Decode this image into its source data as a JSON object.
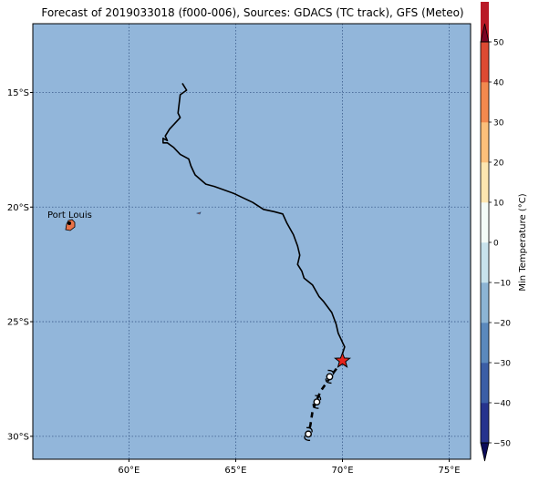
{
  "title": "Forecast of 2019033018 (f000-006), Sources: GDACS (TC track), GFS (Meteo)",
  "map": {
    "lon_range": [
      55.5,
      76
    ],
    "lat_range": [
      -31,
      -12
    ],
    "ocean_color": "#92b6da",
    "grid_color": "#3a5a8a",
    "land_color": "#e8734a",
    "x_ticks": [
      {
        "value": 60,
        "label": "60°E"
      },
      {
        "value": 65,
        "label": "65°E"
      },
      {
        "value": 70,
        "label": "70°E"
      },
      {
        "value": 75,
        "label": "75°E"
      }
    ],
    "y_ticks": [
      {
        "value": -15,
        "label": "15°S"
      },
      {
        "value": -20,
        "label": "20°S"
      },
      {
        "value": -25,
        "label": "25°S"
      },
      {
        "value": -30,
        "label": "30°S"
      }
    ]
  },
  "city": {
    "name": "Port Louis",
    "lon": 57.5,
    "lat": -20.16
  },
  "track": {
    "past_color": "#000000",
    "past_points": [
      [
        62.5,
        -14.6
      ],
      [
        62.7,
        -14.9
      ],
      [
        62.4,
        -15.1
      ],
      [
        62.3,
        -15.9
      ],
      [
        62.4,
        -16.1
      ],
      [
        61.9,
        -16.6
      ],
      [
        61.7,
        -16.9
      ],
      [
        61.8,
        -17.1
      ],
      [
        61.6,
        -17.0
      ],
      [
        61.6,
        -17.2
      ],
      [
        61.8,
        -17.2
      ],
      [
        62.1,
        -17.4
      ],
      [
        62.4,
        -17.7
      ],
      [
        62.8,
        -17.9
      ],
      [
        62.9,
        -18.2
      ],
      [
        63.0,
        -18.4
      ],
      [
        63.1,
        -18.6
      ],
      [
        63.6,
        -19.0
      ],
      [
        64.0,
        -19.1
      ],
      [
        64.9,
        -19.4
      ],
      [
        65.8,
        -19.8
      ],
      [
        66.3,
        -20.1
      ],
      [
        66.8,
        -20.2
      ],
      [
        67.2,
        -20.3
      ],
      [
        67.4,
        -20.7
      ],
      [
        67.7,
        -21.2
      ],
      [
        67.9,
        -21.7
      ],
      [
        68.0,
        -22.1
      ],
      [
        67.9,
        -22.5
      ],
      [
        68.1,
        -22.8
      ],
      [
        68.2,
        -23.1
      ],
      [
        68.6,
        -23.4
      ],
      [
        68.9,
        -23.9
      ],
      [
        69.1,
        -24.1
      ],
      [
        69.5,
        -24.6
      ],
      [
        69.7,
        -25.1
      ],
      [
        69.8,
        -25.5
      ],
      [
        69.9,
        -25.7
      ],
      [
        70.0,
        -25.9
      ],
      [
        70.1,
        -26.1
      ],
      [
        70.0,
        -26.4
      ],
      [
        70.0,
        -26.7
      ]
    ],
    "forecast_points": [
      [
        70.0,
        -26.7
      ],
      [
        69.6,
        -27.2
      ],
      [
        69.3,
        -27.6
      ],
      [
        69.0,
        -28.0
      ],
      [
        68.8,
        -28.4
      ],
      [
        68.6,
        -28.9
      ],
      [
        68.5,
        -29.5
      ],
      [
        68.4,
        -29.9
      ]
    ],
    "current_position": {
      "lon": 70.0,
      "lat": -26.7,
      "color": "#e8251d"
    },
    "forecast_markers": [
      {
        "lon": 69.4,
        "lat": -27.4
      },
      {
        "lon": 68.8,
        "lat": -28.5
      },
      {
        "lon": 68.4,
        "lat": -29.9
      }
    ]
  },
  "colorbar": {
    "label": "Min Temperature (°C)",
    "min": -50,
    "max": 50,
    "tick_labels": [
      "50",
      "40",
      "30",
      "20",
      "10",
      "0",
      "−10",
      "−20",
      "−30",
      "−40",
      "−50"
    ],
    "tick_values": [
      50,
      40,
      30,
      20,
      10,
      0,
      -10,
      -20,
      -30,
      -40,
      -50
    ],
    "colors": [
      "#0b0c5a",
      "#26338e",
      "#3b5ea6",
      "#5b89bd",
      "#8cb4d4",
      "#c7e2ec",
      "#f3fbf7",
      "#fde6b0",
      "#fcbf7a",
      "#f3894e",
      "#dd4a32",
      "#b91a27",
      "#7c0322"
    ]
  }
}
